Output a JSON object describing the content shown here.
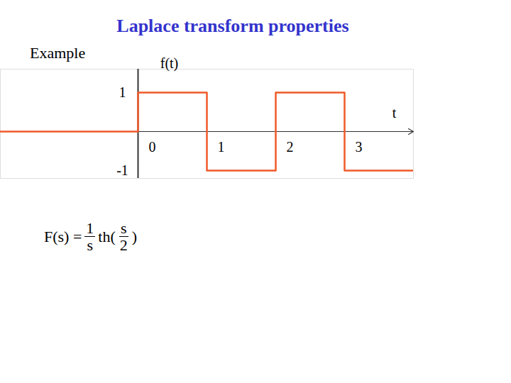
{
  "chart_data": {
    "type": "line",
    "title": "Laplace transform properties",
    "annotations": [
      "Example"
    ],
    "formula": {
      "lhs": "F(s) =",
      "frac1": [
        "1",
        "s"
      ],
      "fn": "th(",
      "frac2": [
        "s",
        "2"
      ],
      "close": ")"
    },
    "xlabel": "t",
    "ylabel": "f(t)",
    "x": [
      -2,
      0,
      1,
      2,
      3,
      4
    ],
    "values": [
      0,
      1,
      -1,
      1,
      -1,
      -1
    ],
    "color": "#f05a28",
    "line_style": "step",
    "xlim": [
      -2,
      4
    ],
    "xticks": [
      0,
      1,
      2,
      3
    ],
    "ylim": [
      -1.2,
      1.6
    ],
    "yticks": [
      -1,
      1
    ],
    "grid": false
  }
}
